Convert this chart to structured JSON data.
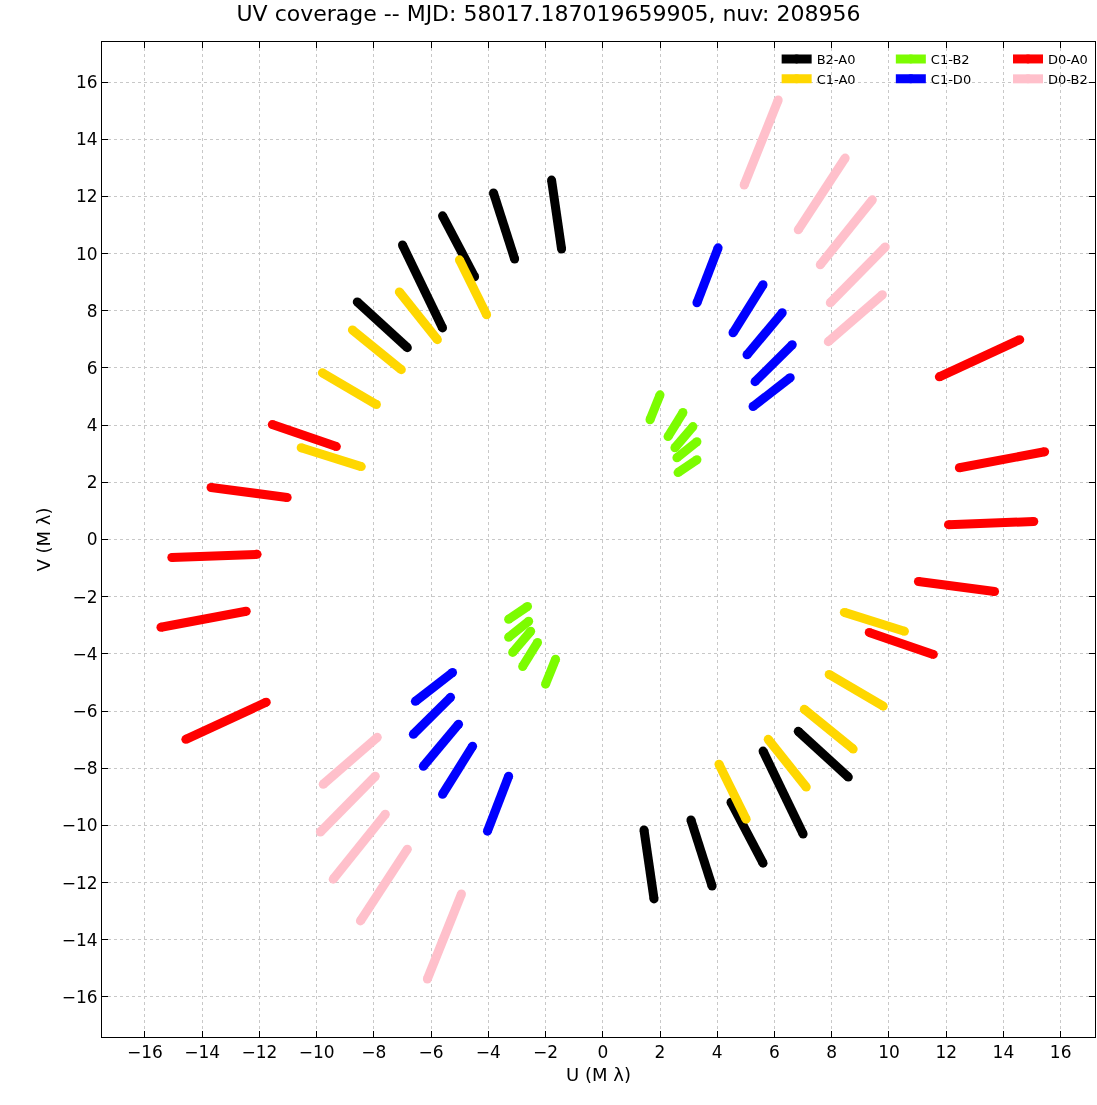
{
  "chart_data": {
    "type": "line",
    "title": "UV coverage -- MJD: 58017.187019659905, nuv: 208956",
    "xlabel": "U (M λ)",
    "ylabel": "V (M λ)",
    "xlim": [
      -17.5,
      17.2
    ],
    "ylim": [
      -17.4,
      17.4
    ],
    "xticks": [
      -16,
      -14,
      -12,
      -10,
      -8,
      -6,
      -4,
      -2,
      0,
      2,
      4,
      6,
      8,
      10,
      12,
      14,
      16
    ],
    "yticks": [
      -16,
      -14,
      -12,
      -10,
      -8,
      -6,
      -4,
      -2,
      0,
      2,
      4,
      6,
      8,
      10,
      12,
      14,
      16
    ],
    "grid": true,
    "legend": "top right",
    "marker": "circle",
    "line_style": "solid",
    "series": [
      {
        "name": "B2-A0",
        "color": "#000000",
        "x": [
          -8.58,
          -6.83,
          null,
          -7.0,
          -5.6,
          null,
          -5.6,
          -4.48,
          null,
          -3.82,
          -3.08,
          null,
          -1.79,
          -1.44,
          null,
          8.58,
          6.83,
          null,
          7.0,
          5.6,
          null,
          5.6,
          4.48,
          null,
          3.82,
          3.08,
          null,
          1.79,
          1.44
        ],
        "values": [
          8.31,
          6.71,
          null,
          10.3,
          7.4,
          null,
          11.32,
          9.19,
          null,
          12.12,
          9.81,
          null,
          12.57,
          10.16,
          null,
          -8.31,
          -6.71,
          null,
          -10.3,
          -7.4,
          null,
          -11.32,
          -9.19,
          null,
          -12.12,
          -9.81,
          null,
          -12.57,
          -10.16
        ]
      },
      {
        "name": "C1-B2",
        "color": "#7cfc00",
        "x": [
          1.65,
          2.0,
          null,
          2.28,
          2.8,
          null,
          2.52,
          3.15,
          null,
          2.59,
          3.29,
          null,
          2.63,
          3.29,
          null,
          -1.65,
          -2.0,
          null,
          -2.28,
          -2.8,
          null,
          -2.52,
          -3.15,
          null,
          -2.59,
          -3.29,
          null,
          -2.63,
          -3.29
        ],
        "values": [
          4.19,
          5.06,
          null,
          3.6,
          4.44,
          null,
          3.21,
          3.95,
          null,
          2.86,
          3.42,
          null,
          2.34,
          2.79,
          null,
          -4.19,
          -5.06,
          null,
          -3.6,
          -4.44,
          null,
          -3.21,
          -3.95,
          null,
          -2.86,
          -3.42,
          null,
          -2.34,
          -2.79
        ]
      },
      {
        "name": "D0-A0",
        "color": "#ff0000",
        "x": [
          -11.55,
          -9.31,
          null,
          -13.69,
          -11.03,
          null,
          -15.06,
          -12.08,
          null,
          -15.44,
          -12.46,
          null,
          -14.57,
          -11.76,
          null,
          11.55,
          9.31,
          null,
          13.69,
          11.03,
          null,
          15.06,
          12.08,
          null,
          15.44,
          12.46,
          null,
          14.57,
          11.76
        ],
        "values": [
          4.02,
          3.25,
          null,
          1.82,
          1.47,
          null,
          -0.63,
          -0.52,
          null,
          -3.07,
          -2.51,
          null,
          -6.99,
          -5.69,
          null,
          -4.02,
          -3.25,
          null,
          -1.82,
          -1.47,
          null,
          0.63,
          0.52,
          null,
          3.07,
          2.51,
          null,
          6.99,
          5.69
        ]
      },
      {
        "name": "C1-A0",
        "color": "#ffd700",
        "x": [
          -5.01,
          -4.06,
          null,
          -7.11,
          -5.78,
          null,
          -8.75,
          -7.04,
          null,
          -9.8,
          -7.91,
          null,
          -10.54,
          -8.44,
          null,
          5.01,
          4.06,
          null,
          7.11,
          5.78,
          null,
          8.75,
          7.04,
          null,
          9.8,
          7.91,
          null,
          10.54,
          8.44
        ],
        "values": [
          9.78,
          7.86,
          null,
          8.66,
          6.99,
          null,
          7.33,
          5.94,
          null,
          5.83,
          4.72,
          null,
          3.21,
          2.55,
          null,
          -9.78,
          -7.86,
          null,
          -8.66,
          -6.99,
          null,
          -7.33,
          -5.94,
          null,
          -5.83,
          -4.72,
          null,
          -3.21,
          -2.55
        ]
      },
      {
        "name": "C1-D0",
        "color": "#0000ff",
        "x": [
          3.29,
          4.03,
          null,
          4.55,
          5.6,
          null,
          5.04,
          6.27,
          null,
          5.32,
          6.62,
          null,
          5.25,
          6.55,
          null,
          -3.29,
          -4.03,
          null,
          -4.55,
          -5.6,
          null,
          -5.04,
          -6.27,
          null,
          -5.32,
          -6.62,
          null,
          -5.25,
          -6.55
        ],
        "values": [
          8.28,
          10.2,
          null,
          7.23,
          8.91,
          null,
          6.46,
          7.93,
          null,
          5.52,
          6.81,
          null,
          4.65,
          5.66,
          null,
          -8.28,
          -10.2,
          null,
          -7.23,
          -8.91,
          null,
          -6.46,
          -7.93,
          null,
          -5.52,
          -6.81,
          null,
          -4.65,
          -5.66
        ]
      },
      {
        "name": "D0-B2",
        "color": "#ffc0cb",
        "x": [
          4.94,
          6.13,
          null,
          6.83,
          8.47,
          null,
          7.6,
          9.42,
          null,
          7.95,
          9.87,
          null,
          7.88,
          9.77,
          null,
          -4.94,
          -6.13,
          null,
          -6.83,
          -8.47,
          null,
          -7.6,
          -9.42,
          null,
          -7.95,
          -9.87,
          null,
          -7.88,
          -9.77
        ],
        "values": [
          12.4,
          15.37,
          null,
          10.83,
          13.34,
          null,
          9.61,
          11.88,
          null,
          8.28,
          10.23,
          null,
          6.92,
          8.56,
          null,
          -12.4,
          -15.37,
          null,
          -10.83,
          -13.34,
          null,
          -9.61,
          -11.88,
          null,
          -8.28,
          -10.23,
          null,
          -6.92,
          -8.56
        ]
      }
    ]
  }
}
